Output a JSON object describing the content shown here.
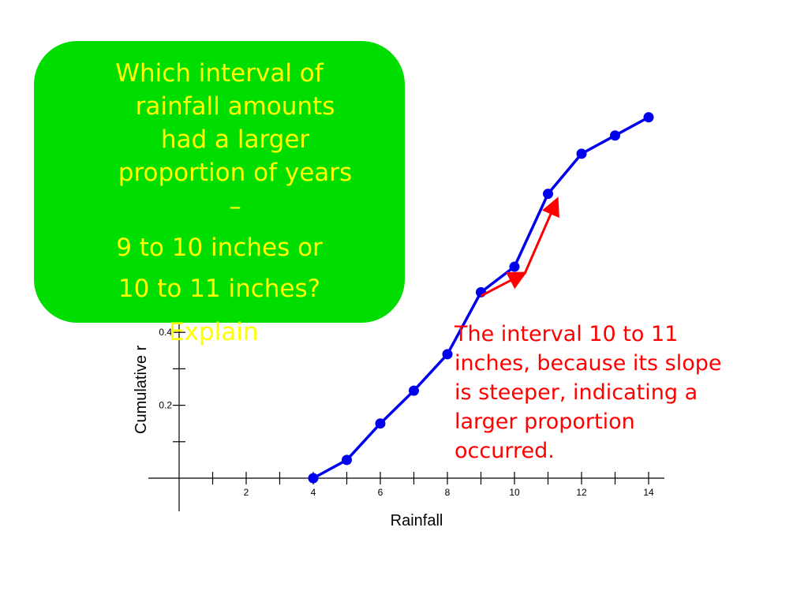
{
  "question": {
    "lines": [
      "Which interval of",
      "rainfall amounts",
      "had a larger",
      "proportion of years",
      "–"
    ],
    "choice_1": "9 to 10 inches or",
    "choice_2": "10 to 11 inches?",
    "explain": "Explain"
  },
  "answer": {
    "lines": [
      "The interval 10 to 11",
      "inches, because its slope",
      "is steeper, indicating a",
      "larger proportion",
      "occurred."
    ]
  },
  "colors": {
    "box": "#00dd00",
    "question_text": "#ffff00",
    "answer_text": "#ff0000",
    "series": "#0000ee",
    "arrows": "#ff0000"
  },
  "chart_data": {
    "type": "line",
    "xlabel": "Rainfall",
    "ylabel": "Cumulative r",
    "xlim": [
      0,
      14
    ],
    "x_ticks": [
      1,
      2,
      3,
      4,
      5,
      6,
      7,
      8,
      9,
      10,
      11,
      12,
      13,
      14
    ],
    "x_tick_labels": [
      "2",
      "4",
      "6",
      "8",
      "10",
      "12",
      "14"
    ],
    "x_tick_label_values": [
      2,
      4,
      6,
      8,
      10,
      12,
      14
    ],
    "y_ticks": [
      0.1,
      0.2,
      0.3,
      0.4
    ],
    "y_tick_labels": [
      "0.2",
      "0.4"
    ],
    "y_tick_label_values": [
      0.2,
      0.4
    ],
    "grid": false,
    "series": [
      {
        "x": [
          4,
          5,
          6,
          7,
          8,
          9,
          10,
          11,
          12,
          13,
          14
        ],
        "y": [
          0.0,
          0.05,
          0.15,
          0.24,
          0.34,
          0.51,
          0.58,
          0.78,
          0.89,
          0.94,
          0.99
        ]
      }
    ],
    "annotations": [
      {
        "type": "arrow",
        "from": [
          9,
          0.5
        ],
        "to": [
          10.25,
          0.56
        ]
      },
      {
        "type": "arrow",
        "from": [
          10.3,
          0.56
        ],
        "to": [
          11.25,
          0.76
        ]
      }
    ]
  }
}
